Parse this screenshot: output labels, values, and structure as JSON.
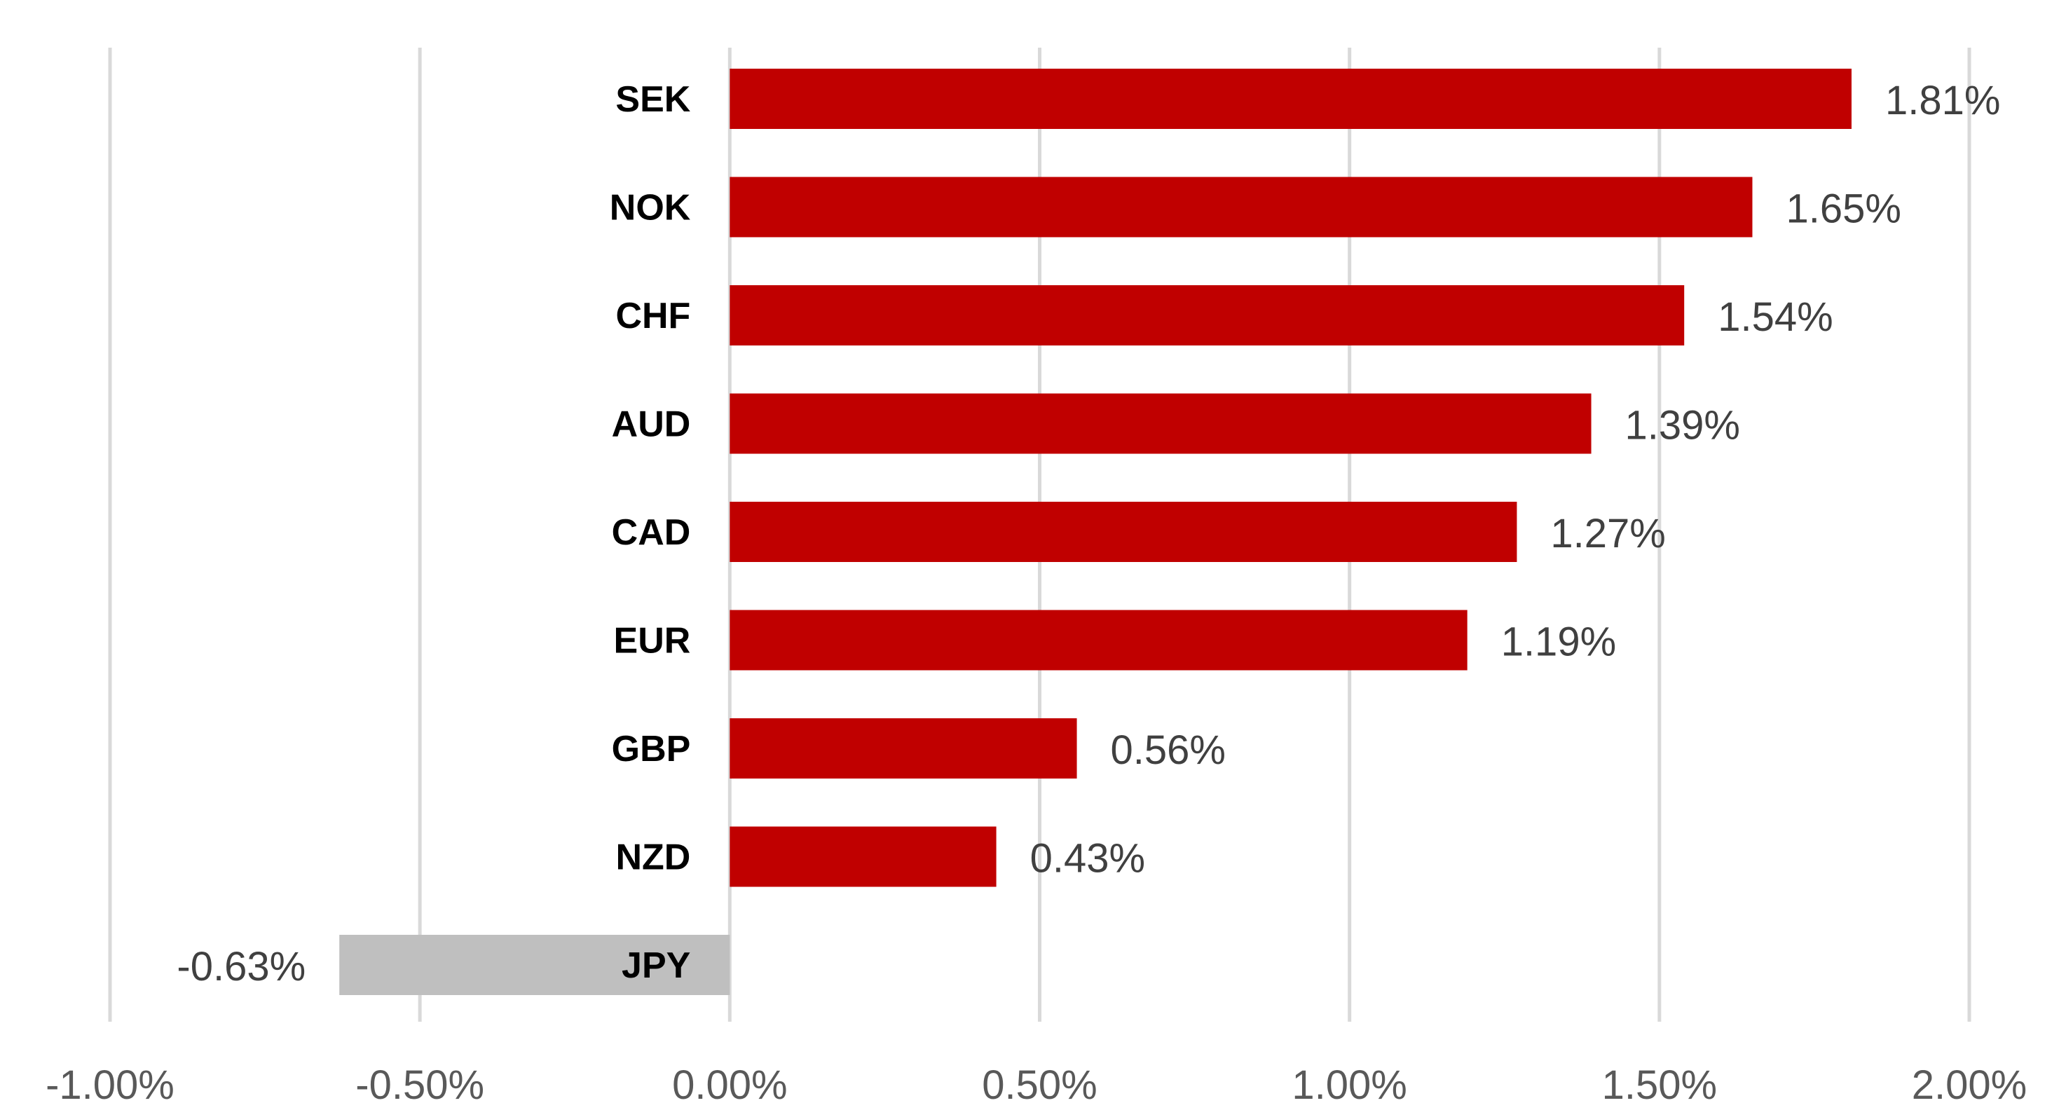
{
  "chart_data": {
    "type": "bar",
    "orientation": "horizontal",
    "title": "",
    "xlabel": "",
    "ylabel": "",
    "categories": [
      "SEK",
      "NOK",
      "CHF",
      "AUD",
      "CAD",
      "EUR",
      "GBP",
      "NZD",
      "JPY"
    ],
    "values": [
      1.81,
      1.65,
      1.54,
      1.39,
      1.27,
      1.19,
      0.56,
      0.43,
      -0.63
    ],
    "value_labels": [
      "1.81%",
      "1.65%",
      "1.54%",
      "1.39%",
      "1.27%",
      "1.19%",
      "0.56%",
      "0.43%",
      "-0.63%"
    ],
    "xlim": [
      -1.0,
      2.0
    ],
    "x_ticks": [
      -1.0,
      -0.5,
      0.0,
      0.5,
      1.0,
      1.5,
      2.0
    ],
    "x_tick_labels": [
      "-1.00%",
      "-0.50%",
      "0.00%",
      "0.50%",
      "1.00%",
      "1.50%",
      "2.00%"
    ],
    "grid": "vertical",
    "legend": "none",
    "colors": {
      "positive": "#c00000",
      "negative": "#bfbfbf",
      "grid": "#d9d9d9"
    }
  }
}
